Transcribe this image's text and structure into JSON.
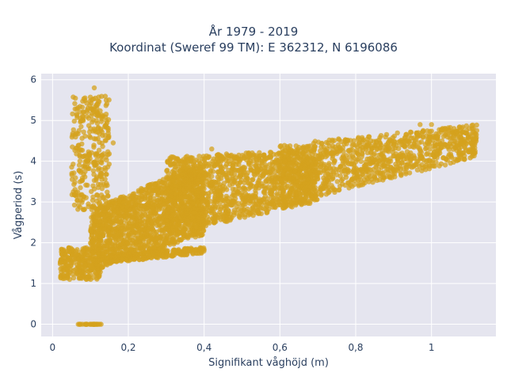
{
  "chart_data": {
    "type": "scatter",
    "title_line1": "År 1979 - 2019",
    "title_line2": "Koordinat (Sweref 99 TM): E 362312, N 6196086",
    "xlabel": "Signifikant våghöjd (m)",
    "ylabel": "Vågperiod (s)",
    "xlim": [
      -0.03,
      1.17
    ],
    "ylim": [
      -0.3,
      6.15
    ],
    "x_ticks": [
      0,
      0.2,
      0.4,
      0.6,
      0.8,
      1
    ],
    "x_tick_labels": [
      "0",
      "0,2",
      "0,4",
      "0,6",
      "0,8",
      "1"
    ],
    "y_ticks": [
      0,
      1,
      2,
      3,
      4,
      5,
      6
    ],
    "y_tick_labels": [
      "0",
      "1",
      "2",
      "3",
      "4",
      "5",
      "6"
    ],
    "grid": true,
    "marker_color": "#D4A21E",
    "plot_bg": "#E5E5EF",
    "clusters": [
      {
        "x": [
          0.06,
          0.13
        ],
        "y": [
          0.0,
          0.0
        ],
        "n": 30,
        "shape": "box"
      },
      {
        "x": [
          0.05,
          0.15
        ],
        "y": [
          2.8,
          5.6
        ],
        "n": 320,
        "shape": "box"
      },
      {
        "x": [
          0.02,
          0.13
        ],
        "y": [
          1.1,
          1.9
        ],
        "n": 260,
        "shape": "box"
      },
      {
        "x": [
          0.1,
          0.4
        ],
        "y_low": [
          1.3,
          2.2
        ],
        "y_high": [
          2.8,
          4.0
        ],
        "n": 1500,
        "shape": "band"
      },
      {
        "x": [
          0.3,
          0.7
        ],
        "y_low": [
          2.2,
          3.0
        ],
        "y_high": [
          4.1,
          4.3
        ],
        "n": 1300,
        "shape": "band"
      },
      {
        "x": [
          0.6,
          1.12
        ],
        "y_low": [
          2.9,
          4.1
        ],
        "y_high": [
          4.4,
          4.9
        ],
        "n": 1000,
        "shape": "band"
      },
      {
        "x": [
          0.15,
          0.4
        ],
        "y_low": [
          1.5,
          1.75
        ],
        "y_high": [
          1.7,
          1.9
        ],
        "n": 220,
        "shape": "band"
      }
    ],
    "notable_points": [
      {
        "x": 0.11,
        "y": 5.8
      },
      {
        "x": 0.16,
        "y": 4.45
      },
      {
        "x": 0.13,
        "y": 2.9
      },
      {
        "x": 0.97,
        "y": 4.9
      },
      {
        "x": 1.0,
        "y": 4.9
      },
      {
        "x": 1.1,
        "y": 4.8
      },
      {
        "x": 0.9,
        "y": 4.4
      },
      {
        "x": 0.08,
        "y": 1.85
      },
      {
        "x": 0.4,
        "y": 1.83
      },
      {
        "x": 0.42,
        "y": 4.3
      }
    ]
  }
}
